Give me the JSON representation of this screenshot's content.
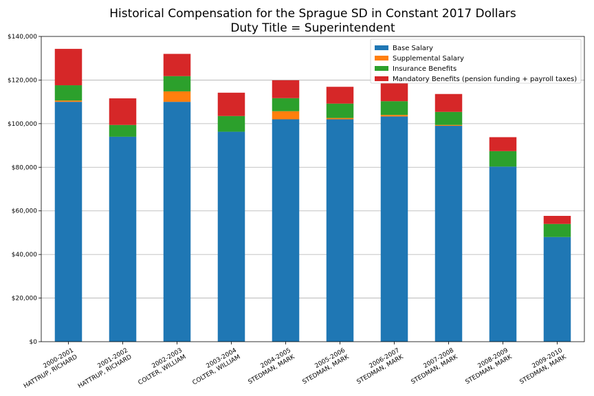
{
  "chart_data": {
    "type": "bar",
    "stacked": true,
    "title": "Historical Compensation for the Sprague SD in Constant 2017 Dollars",
    "subtitle": "Duty Title = Superintendent",
    "xlabel": "",
    "ylabel": "",
    "ylim": [
      0,
      140000
    ],
    "y_ticks": [
      "$0",
      "$20,000",
      "$40,000",
      "$60,000",
      "$80,000",
      "$100,000",
      "$120,000",
      "$140,000"
    ],
    "grid": "horizontal",
    "legend_position": "top-right",
    "categories": [
      [
        "2000-2001",
        "HATTRUP, RICHARD"
      ],
      [
        "2001-2002",
        "HATTRUP, RICHARD"
      ],
      [
        "2002-2003",
        "COLTER, WILLIAM"
      ],
      [
        "2003-2004",
        "COLTER, WILLIAM"
      ],
      [
        "2004-2005",
        "STEDMAN, MARK"
      ],
      [
        "2005-2006",
        "STEDMAN, MARK"
      ],
      [
        "2006-2007",
        "STEDMAN, MARK"
      ],
      [
        "2007-2008",
        "STEDMAN, MARK"
      ],
      [
        "2008-2009",
        "STEDMAN, MARK"
      ],
      [
        "2009-2010",
        "STEDMAN, MARK"
      ]
    ],
    "series": [
      {
        "name": "Base Salary",
        "color": "#1f77b4",
        "values": [
          110000,
          94000,
          110000,
          96300,
          102000,
          102000,
          103300,
          99000,
          80300,
          48000
        ]
      },
      {
        "name": "Supplemental Salary",
        "color": "#ff7f0e",
        "values": [
          600,
          0,
          4800,
          0,
          3700,
          600,
          700,
          400,
          0,
          0
        ]
      },
      {
        "name": "Insurance Benefits",
        "color": "#2ca02c",
        "values": [
          7000,
          5400,
          7000,
          7200,
          6000,
          6600,
          6300,
          6000,
          7100,
          6000
        ]
      },
      {
        "name": "Mandatory Benefits (pension funding + payroll taxes)",
        "color": "#d62728",
        "values": [
          16700,
          12200,
          10200,
          10700,
          8200,
          7700,
          8400,
          8200,
          6400,
          3700
        ]
      }
    ]
  }
}
